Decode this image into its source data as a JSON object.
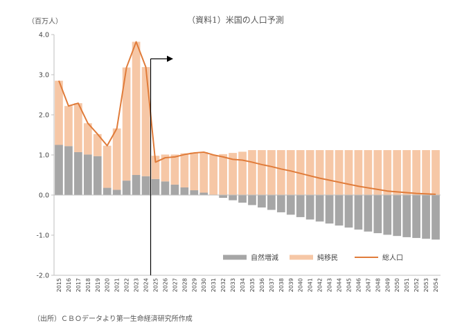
{
  "title": "（資料1）米国の人口予測",
  "unit_label": "（百万人）",
  "source": "（出所）ＣＢＯデータより第一生命経済研究所作成",
  "colors": {
    "natural": "#a6a6a6",
    "migration": "#f6c7a6",
    "total": "#e07b39",
    "arrow": "#000000",
    "axis": "#bfbfbf"
  },
  "chart_data": {
    "type": "bar",
    "stacked": true,
    "categories": [
      "2015",
      "2016",
      "2017",
      "2018",
      "2019",
      "2020",
      "2021",
      "2022",
      "2023",
      "2024",
      "2025",
      "2026",
      "2027",
      "2028",
      "2029",
      "2030",
      "2031",
      "2032",
      "2033",
      "2034",
      "2035",
      "2036",
      "2037",
      "2038",
      "2039",
      "2040",
      "2041",
      "2042",
      "2043",
      "2044",
      "2045",
      "2046",
      "2047",
      "2048",
      "2049",
      "2050",
      "2051",
      "2052",
      "2053",
      "2054"
    ],
    "ylim": [
      -2.0,
      4.0
    ],
    "yticks": [
      -2.0,
      -1.0,
      0.0,
      1.0,
      2.0,
      3.0,
      4.0
    ],
    "ytick_labels": [
      "-2.0",
      "-1.0",
      "0.0",
      "1.0",
      "2.0",
      "3.0",
      "4.0"
    ],
    "grid": false,
    "legend_position": "bottom-right",
    "series": [
      {
        "name": "自然増減",
        "kind": "bar",
        "values": [
          1.25,
          1.22,
          1.07,
          1.01,
          0.97,
          0.18,
          0.13,
          0.36,
          0.5,
          0.47,
          0.4,
          0.34,
          0.26,
          0.19,
          0.12,
          0.06,
          0.0,
          -0.07,
          -0.13,
          -0.19,
          -0.25,
          -0.31,
          -0.37,
          -0.43,
          -0.49,
          -0.55,
          -0.61,
          -0.66,
          -0.71,
          -0.76,
          -0.81,
          -0.86,
          -0.91,
          -0.95,
          -0.99,
          -1.02,
          -1.05,
          -1.07,
          -1.09,
          -1.11
        ]
      },
      {
        "name": "純移民",
        "kind": "bar",
        "values": [
          1.6,
          1.0,
          1.22,
          0.78,
          0.55,
          1.05,
          1.53,
          2.82,
          3.32,
          2.72,
          0.58,
          0.67,
          0.75,
          0.85,
          0.94,
          1.01,
          1.0,
          1.02,
          1.05,
          1.08,
          1.12,
          1.12,
          1.12,
          1.12,
          1.12,
          1.12,
          1.12,
          1.12,
          1.12,
          1.12,
          1.12,
          1.12,
          1.12,
          1.12,
          1.12,
          1.12,
          1.12,
          1.12,
          1.12,
          1.12
        ]
      },
      {
        "name": "総人口",
        "kind": "line",
        "values": [
          2.85,
          2.22,
          2.29,
          1.79,
          1.52,
          1.23,
          1.66,
          3.18,
          3.82,
          3.19,
          0.82,
          0.93,
          0.95,
          1.01,
          1.05,
          1.07,
          1.0,
          0.95,
          0.89,
          0.87,
          0.82,
          0.76,
          0.71,
          0.65,
          0.6,
          0.54,
          0.48,
          0.42,
          0.37,
          0.32,
          0.27,
          0.22,
          0.18,
          0.14,
          0.1,
          0.08,
          0.06,
          0.04,
          0.03,
          0.02
        ]
      }
    ]
  }
}
